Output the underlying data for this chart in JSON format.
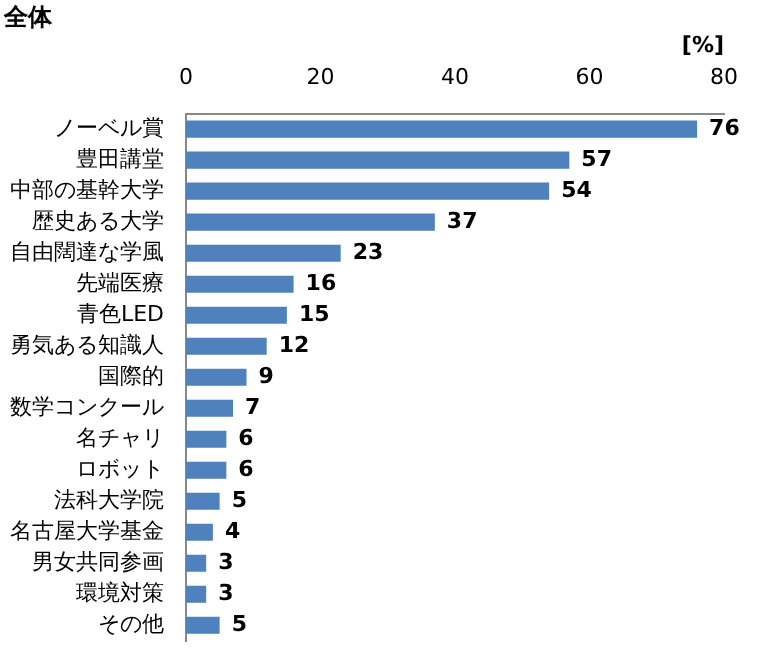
{
  "chart_data": {
    "type": "bar",
    "orientation": "horizontal",
    "title": "全体",
    "xlabel": "[%]",
    "categories": [
      "ノーベル賞",
      "豊田講堂",
      "中部の基幹大学",
      "歴史ある大学",
      "自由闊達な学風",
      "先端医療",
      "青色LED",
      "勇気ある知識人",
      "国際的",
      "数学コンクール",
      "名チャリ",
      "ロボット",
      "法科大学院",
      "名古屋大学基金",
      "男女共同参画",
      "環境対策",
      "その他"
    ],
    "values": [
      76,
      57,
      54,
      37,
      23,
      16,
      15,
      12,
      9,
      7,
      6,
      6,
      5,
      4,
      3,
      3,
      5
    ],
    "color": "#4f81bd",
    "xlim": [
      0,
      80
    ],
    "xticks": [
      0,
      20,
      40,
      60,
      80
    ],
    "grid": false,
    "legend": false,
    "data_labels": true
  }
}
